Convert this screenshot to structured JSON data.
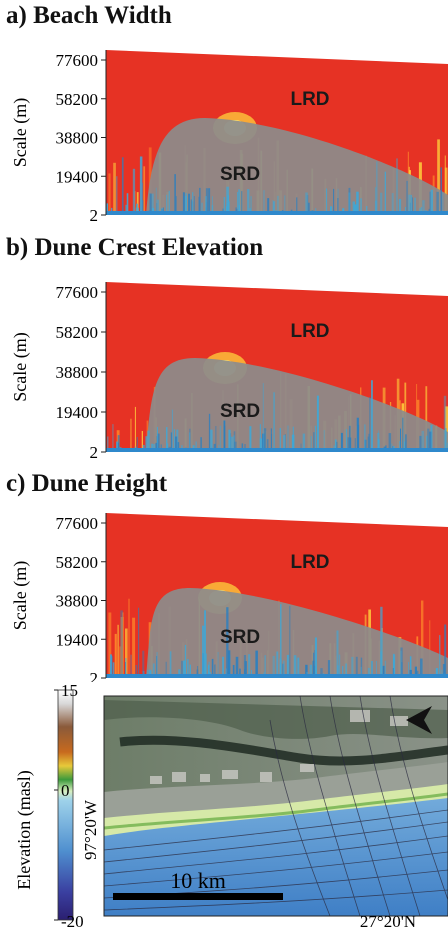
{
  "panels": [
    {
      "title": "a) Beach Width",
      "ylabel": "Scale (m)",
      "yticks": [
        "77600",
        "58200",
        "38800",
        "19400",
        "2"
      ],
      "labels": {
        "upper": "LRD",
        "lower": "SRD"
      }
    },
    {
      "title": "b) Dune Crest Elevation",
      "ylabel": "Scale (m)",
      "yticks": [
        "77600",
        "58200",
        "38800",
        "19400",
        "2"
      ],
      "labels": {
        "upper": "LRD",
        "lower": "SRD"
      }
    },
    {
      "title": "c) Dune Height",
      "ylabel": "Scale (m)",
      "yticks": [
        "77600",
        "58200",
        "38800",
        "19400",
        "2"
      ],
      "labels": {
        "upper": "LRD",
        "lower": "SRD"
      }
    }
  ],
  "map": {
    "colorbar_label": "Elevation (masl)",
    "colorbar_ticks": [
      "15",
      "0",
      "-20"
    ],
    "lon_label": "97°20'W",
    "lat_label": "27°20'N",
    "scalebar": "10 km"
  },
  "colors": {
    "lrd": "#e63224",
    "srd": "#8c8c8c",
    "water": "#3fa7d6"
  }
}
